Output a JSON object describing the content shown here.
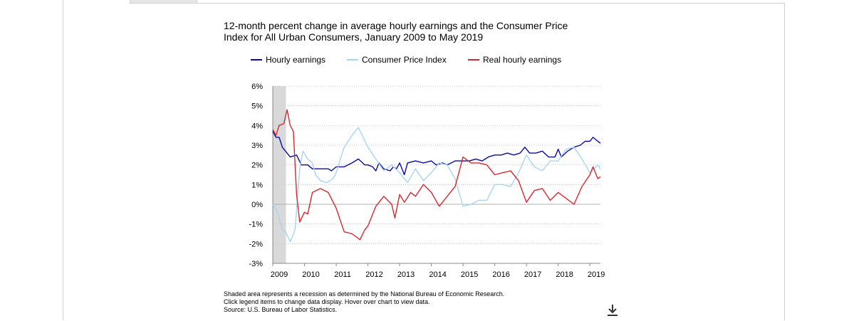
{
  "title": "12-month percent change in average hourly earnings and the Consumer Price Index for All Urban Consumers, January 2009 to May 2019",
  "icons": {
    "download": "download-icon"
  },
  "notes": [
    "Shaded area represents a recession as determined by the National Bureau of Economic Research.",
    "Click legend items to change data display. Hover over chart to view data.",
    "Source: U.S. Bureau of Labor Statistics."
  ],
  "chart_data": {
    "type": "line",
    "title": "12-month percent change in average hourly earnings and the Consumer Price Index for All Urban Consumers, January 2009 to May 2019",
    "xlabel": "",
    "ylabel": "",
    "xlim": [
      2009.0,
      2019.333
    ],
    "ylim": [
      -3,
      6
    ],
    "y_ticks": [
      6,
      5,
      4,
      3,
      2,
      1,
      0,
      -1,
      -2,
      -3
    ],
    "y_tick_labels": [
      "6%",
      "5%",
      "4%",
      "3%",
      "2%",
      "1%",
      "0%",
      "-1%",
      "-2%",
      "-3%"
    ],
    "x_ticks": [
      2009,
      2010,
      2011,
      2012,
      2013,
      2014,
      2015,
      2016,
      2017,
      2018,
      2019
    ],
    "x_tick_labels": [
      "2009",
      "2010",
      "2011",
      "2012",
      "2013",
      "2014",
      "2015",
      "2016",
      "2017",
      "2018",
      "2019"
    ],
    "grid": "horizontal dotted",
    "legend": "top",
    "recession": {
      "start": 2009.0,
      "end": 2009.417,
      "color": "#d9d9d9"
    },
    "series": [
      {
        "name": "Hourly earnings",
        "color": "#0a0aa0",
        "points": [
          [
            2009.0,
            3.7
          ],
          [
            2009.1,
            3.4
          ],
          [
            2009.2,
            3.4
          ],
          [
            2009.3,
            2.9
          ],
          [
            2009.45,
            2.6
          ],
          [
            2009.55,
            2.4
          ],
          [
            2009.75,
            2.5
          ],
          [
            2009.9,
            2.0
          ],
          [
            2010.1,
            2.0
          ],
          [
            2010.25,
            1.8
          ],
          [
            2010.5,
            1.8
          ],
          [
            2010.75,
            1.8
          ],
          [
            2010.85,
            1.7
          ],
          [
            2011.0,
            1.9
          ],
          [
            2011.25,
            1.9
          ],
          [
            2011.5,
            2.1
          ],
          [
            2011.7,
            2.3
          ],
          [
            2011.9,
            2.0
          ],
          [
            2012.0,
            2.0
          ],
          [
            2012.15,
            1.9
          ],
          [
            2012.25,
            1.7
          ],
          [
            2012.35,
            2.1
          ],
          [
            2012.5,
            1.8
          ],
          [
            2012.7,
            1.7
          ],
          [
            2012.8,
            1.9
          ],
          [
            2012.9,
            1.8
          ],
          [
            2013.0,
            2.1
          ],
          [
            2013.15,
            1.5
          ],
          [
            2013.25,
            2.1
          ],
          [
            2013.5,
            2.2
          ],
          [
            2013.75,
            2.1
          ],
          [
            2014.0,
            2.2
          ],
          [
            2014.15,
            2.0
          ],
          [
            2014.35,
            2.1
          ],
          [
            2014.5,
            2.0
          ],
          [
            2014.75,
            2.2
          ],
          [
            2015.0,
            2.2
          ],
          [
            2015.2,
            2.2
          ],
          [
            2015.4,
            2.3
          ],
          [
            2015.6,
            2.2
          ],
          [
            2015.8,
            2.4
          ],
          [
            2016.0,
            2.5
          ],
          [
            2016.2,
            2.5
          ],
          [
            2016.4,
            2.6
          ],
          [
            2016.6,
            2.5
          ],
          [
            2016.8,
            2.6
          ],
          [
            2016.95,
            2.9
          ],
          [
            2017.1,
            2.6
          ],
          [
            2017.3,
            2.6
          ],
          [
            2017.5,
            2.7
          ],
          [
            2017.7,
            2.4
          ],
          [
            2017.9,
            2.4
          ],
          [
            2018.0,
            2.8
          ],
          [
            2018.1,
            2.4
          ],
          [
            2018.3,
            2.7
          ],
          [
            2018.5,
            2.9
          ],
          [
            2018.7,
            3.0
          ],
          [
            2018.85,
            3.2
          ],
          [
            2019.0,
            3.2
          ],
          [
            2019.1,
            3.4
          ],
          [
            2019.25,
            3.2
          ],
          [
            2019.333,
            3.1
          ]
        ]
      },
      {
        "name": "Consumer Price Index",
        "color": "#a9d4f0",
        "points": [
          [
            2009.0,
            0.0
          ],
          [
            2009.15,
            -0.4
          ],
          [
            2009.3,
            -1.3
          ],
          [
            2009.4,
            -1.4
          ],
          [
            2009.55,
            -1.9
          ],
          [
            2009.7,
            -1.3
          ],
          [
            2009.85,
            1.8
          ],
          [
            2009.95,
            2.7
          ],
          [
            2010.1,
            2.3
          ],
          [
            2010.25,
            2.1
          ],
          [
            2010.35,
            1.5
          ],
          [
            2010.5,
            1.2
          ],
          [
            2010.7,
            1.1
          ],
          [
            2010.9,
            1.3
          ],
          [
            2011.0,
            1.6
          ],
          [
            2011.25,
            2.9
          ],
          [
            2011.5,
            3.5
          ],
          [
            2011.7,
            3.9
          ],
          [
            2011.85,
            3.4
          ],
          [
            2012.0,
            2.9
          ],
          [
            2012.25,
            2.3
          ],
          [
            2012.5,
            1.7
          ],
          [
            2012.75,
            2.0
          ],
          [
            2013.0,
            1.6
          ],
          [
            2013.25,
            1.1
          ],
          [
            2013.5,
            1.8
          ],
          [
            2013.75,
            1.2
          ],
          [
            2014.0,
            1.6
          ],
          [
            2014.25,
            2.1
          ],
          [
            2014.5,
            2.0
          ],
          [
            2014.75,
            1.3
          ],
          [
            2015.0,
            -0.1
          ],
          [
            2015.25,
            0.0
          ],
          [
            2015.5,
            0.2
          ],
          [
            2015.75,
            0.2
          ],
          [
            2016.0,
            1.0
          ],
          [
            2016.25,
            1.0
          ],
          [
            2016.5,
            0.9
          ],
          [
            2016.75,
            1.6
          ],
          [
            2017.0,
            2.5
          ],
          [
            2017.25,
            1.9
          ],
          [
            2017.5,
            1.7
          ],
          [
            2017.75,
            2.2
          ],
          [
            2018.0,
            2.2
          ],
          [
            2018.25,
            2.8
          ],
          [
            2018.5,
            2.9
          ],
          [
            2018.75,
            2.3
          ],
          [
            2019.0,
            1.6
          ],
          [
            2019.25,
            2.0
          ],
          [
            2019.333,
            1.8
          ]
        ]
      },
      {
        "name": "Real hourly earnings",
        "color": "#d72830",
        "points": [
          [
            2009.0,
            3.8
          ],
          [
            2009.1,
            3.5
          ],
          [
            2009.2,
            4.0
          ],
          [
            2009.35,
            4.1
          ],
          [
            2009.45,
            4.8
          ],
          [
            2009.55,
            4.0
          ],
          [
            2009.65,
            3.7
          ],
          [
            2009.75,
            0.5
          ],
          [
            2009.85,
            -0.9
          ],
          [
            2010.0,
            -0.4
          ],
          [
            2010.1,
            -0.5
          ],
          [
            2010.25,
            0.6
          ],
          [
            2010.5,
            0.8
          ],
          [
            2010.75,
            0.6
          ],
          [
            2011.0,
            -0.2
          ],
          [
            2011.25,
            -1.4
          ],
          [
            2011.5,
            -1.5
          ],
          [
            2011.75,
            -1.8
          ],
          [
            2011.9,
            -1.3
          ],
          [
            2012.0,
            -1.1
          ],
          [
            2012.25,
            -0.1
          ],
          [
            2012.5,
            0.4
          ],
          [
            2012.75,
            0.0
          ],
          [
            2012.85,
            -0.7
          ],
          [
            2013.0,
            0.5
          ],
          [
            2013.15,
            0.1
          ],
          [
            2013.35,
            0.6
          ],
          [
            2013.5,
            0.4
          ],
          [
            2013.75,
            1.0
          ],
          [
            2014.0,
            0.6
          ],
          [
            2014.25,
            -0.1
          ],
          [
            2014.5,
            0.4
          ],
          [
            2014.75,
            0.9
          ],
          [
            2015.0,
            2.4
          ],
          [
            2015.25,
            2.1
          ],
          [
            2015.5,
            2.1
          ],
          [
            2015.75,
            2.0
          ],
          [
            2016.0,
            1.5
          ],
          [
            2016.25,
            1.6
          ],
          [
            2016.5,
            1.7
          ],
          [
            2016.75,
            1.2
          ],
          [
            2017.0,
            0.1
          ],
          [
            2017.25,
            0.7
          ],
          [
            2017.5,
            0.8
          ],
          [
            2017.75,
            0.2
          ],
          [
            2018.0,
            0.6
          ],
          [
            2018.25,
            0.3
          ],
          [
            2018.5,
            0.0
          ],
          [
            2018.75,
            0.9
          ],
          [
            2019.0,
            1.5
          ],
          [
            2019.1,
            1.9
          ],
          [
            2019.25,
            1.3
          ],
          [
            2019.333,
            1.4
          ]
        ]
      }
    ]
  }
}
